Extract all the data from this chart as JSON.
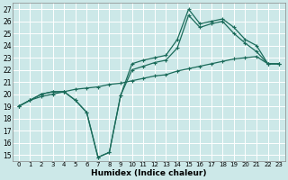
{
  "xlabel": "Humidex (Indice chaleur)",
  "bg_color": "#cce8e8",
  "grid_color": "#ffffff",
  "line_color": "#1a6b5a",
  "xlim": [
    -0.5,
    23.5
  ],
  "ylim": [
    14.5,
    27.5
  ],
  "xticks": [
    0,
    1,
    2,
    3,
    4,
    5,
    6,
    7,
    8,
    9,
    10,
    11,
    12,
    13,
    14,
    15,
    16,
    17,
    18,
    19,
    20,
    21,
    22,
    23
  ],
  "yticks": [
    15,
    16,
    17,
    18,
    19,
    20,
    21,
    22,
    23,
    24,
    25,
    26,
    27
  ],
  "line1_x": [
    0,
    1,
    2,
    3,
    4,
    5,
    6,
    7,
    8,
    9,
    10,
    11,
    12,
    13,
    14,
    15,
    16,
    17,
    18,
    19,
    20,
    21,
    22,
    23
  ],
  "line1_y": [
    19.0,
    19.5,
    20.0,
    20.2,
    20.2,
    19.5,
    18.5,
    14.8,
    15.2,
    19.9,
    22.5,
    22.8,
    23.0,
    23.2,
    24.5,
    27.0,
    25.8,
    26.0,
    26.2,
    25.5,
    24.5,
    24.0,
    22.5,
    22.5
  ],
  "line2_x": [
    0,
    1,
    2,
    3,
    4,
    5,
    6,
    7,
    8,
    9,
    10,
    11,
    12,
    13,
    14,
    15,
    16,
    17,
    18,
    19,
    20,
    21,
    22,
    23
  ],
  "line2_y": [
    19.0,
    19.5,
    20.0,
    20.2,
    20.2,
    19.5,
    18.5,
    14.8,
    15.2,
    19.9,
    22.0,
    22.3,
    22.6,
    22.8,
    23.8,
    26.5,
    25.5,
    25.8,
    26.0,
    25.0,
    24.2,
    23.5,
    22.5,
    22.5
  ],
  "line3_x": [
    0,
    1,
    2,
    3,
    4,
    5,
    6,
    7,
    8,
    9,
    10,
    11,
    12,
    13,
    14,
    15,
    16,
    17,
    18,
    19,
    20,
    21,
    22,
    23
  ],
  "line3_y": [
    19.0,
    19.5,
    19.8,
    20.0,
    20.2,
    20.4,
    20.5,
    20.6,
    20.8,
    20.9,
    21.1,
    21.3,
    21.5,
    21.6,
    21.9,
    22.1,
    22.3,
    22.5,
    22.7,
    22.9,
    23.0,
    23.1,
    22.5,
    22.5
  ]
}
